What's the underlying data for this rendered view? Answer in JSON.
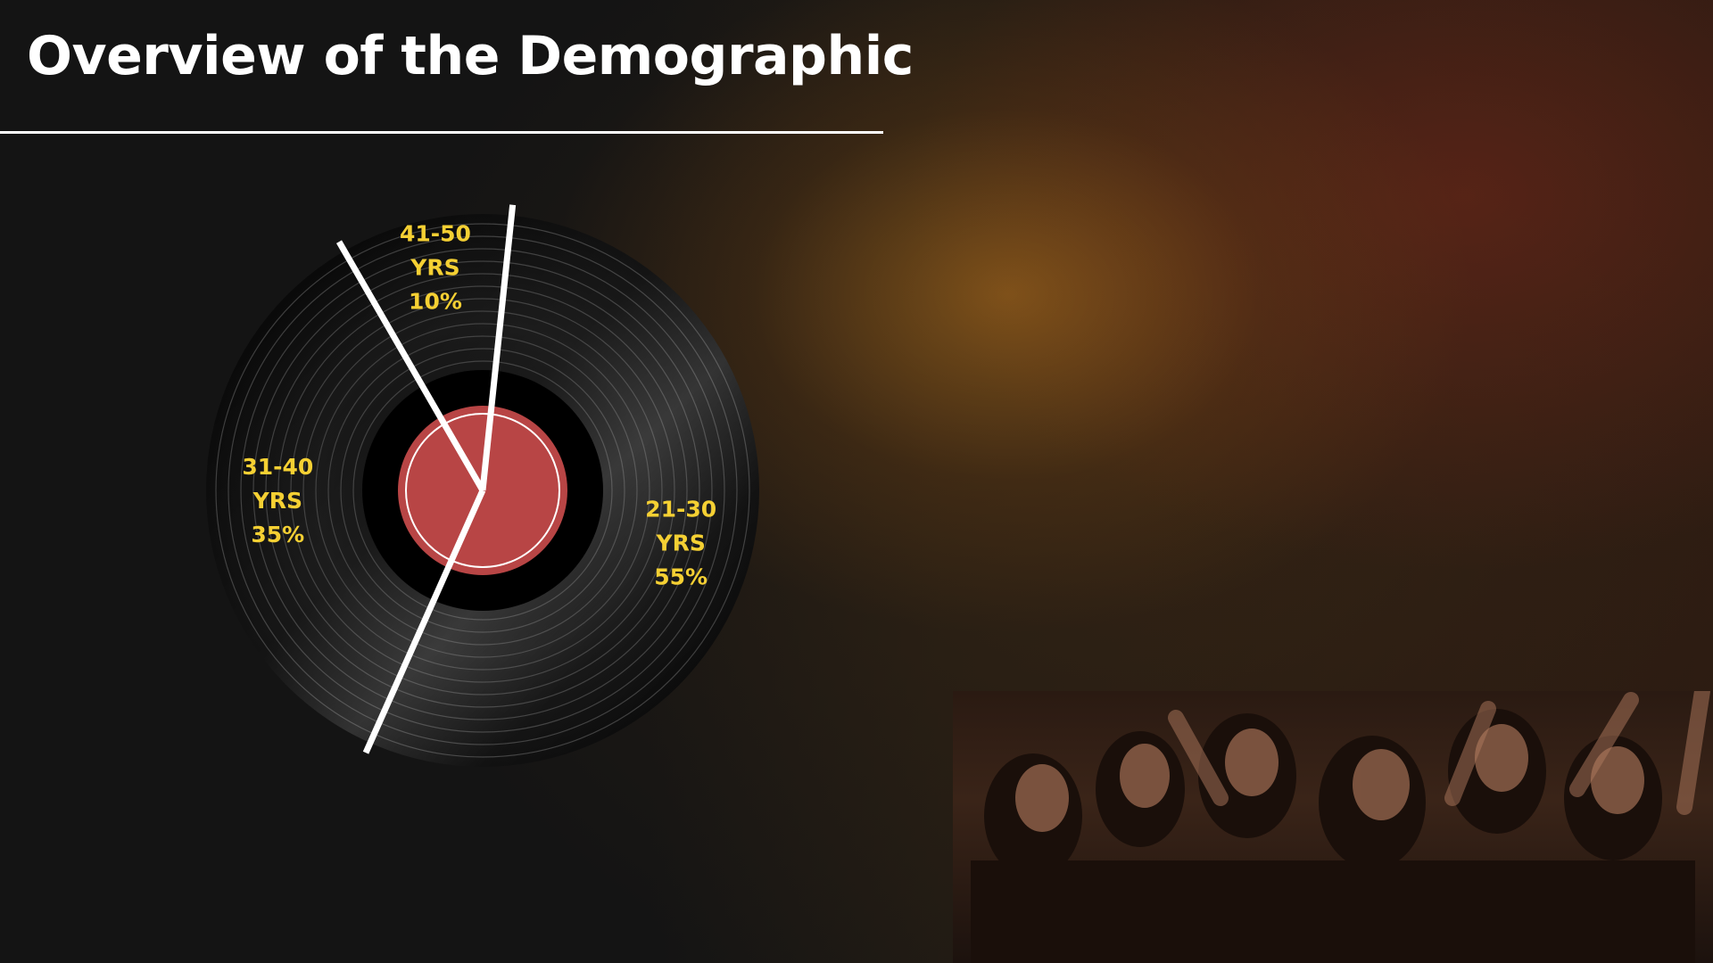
{
  "slide": {
    "title": "Overview of the Demographic"
  },
  "chart_data": {
    "type": "pie",
    "slices": [
      {
        "range": "21-30",
        "unit": "YRS",
        "value": 55,
        "label": "55%"
      },
      {
        "range": "31-40",
        "unit": "YRS",
        "value": 35,
        "label": "35%"
      },
      {
        "range": "41-50",
        "unit": "YRS",
        "value": 10,
        "label": "10%"
      }
    ],
    "colors": {
      "record": "#0a0a0a",
      "center_label": "#b84545",
      "divider": "#ffffff",
      "label_text": "#f5d033"
    }
  },
  "icons": {
    "chart": "vinyl-record-icon",
    "photo": "concert-crowd-photo"
  }
}
